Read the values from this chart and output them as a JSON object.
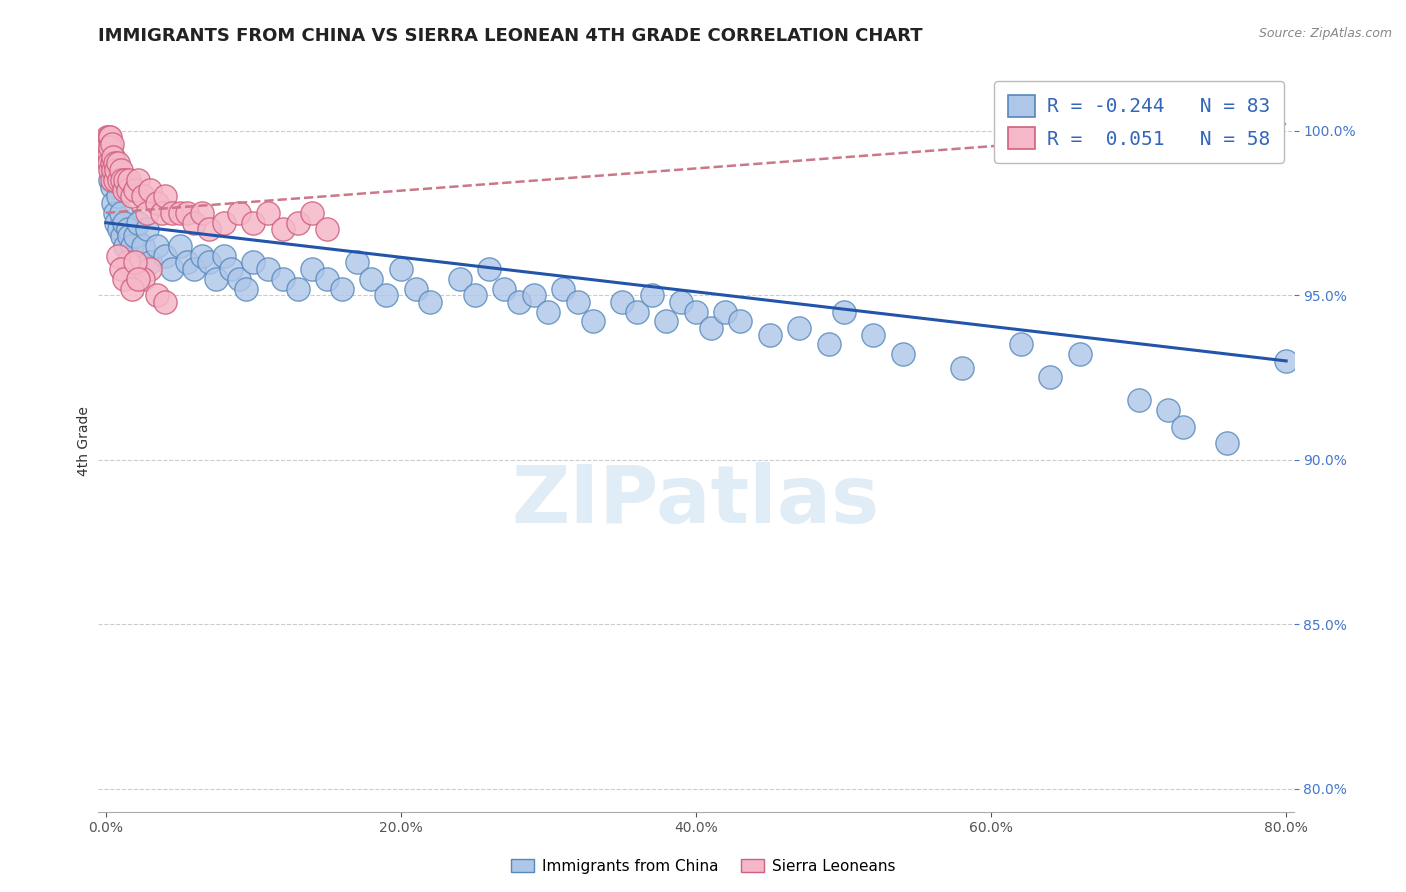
{
  "title": "IMMIGRANTS FROM CHINA VS SIERRA LEONEAN 4TH GRADE CORRELATION CHART",
  "source_text": "Source: ZipAtlas.com",
  "ylabel": "4th Grade",
  "xlim": [
    -0.005,
    0.805
  ],
  "ylim": [
    0.793,
    1.018
  ],
  "xtick_vals": [
    0.0,
    0.2,
    0.4,
    0.6,
    0.8
  ],
  "ytick_vals": [
    0.8,
    0.85,
    0.9,
    0.95,
    1.0
  ],
  "blue_color": "#aec6e8",
  "blue_edge_color": "#5588bb",
  "pink_color": "#f5b8c8",
  "pink_edge_color": "#d06080",
  "blue_line_color": "#2255aa",
  "pink_line_color": "#cc7788",
  "R_blue": -0.244,
  "N_blue": 83,
  "R_pink": 0.051,
  "N_pink": 58,
  "legend_labels": [
    "Immigrants from China",
    "Sierra Leoneans"
  ],
  "watermark": "ZIPatlas",
  "title_fontsize": 13,
  "tick_fontsize": 10,
  "blue_trend_x": [
    0.0,
    0.8
  ],
  "blue_trend_y": [
    0.972,
    0.93
  ],
  "pink_trend_x": [
    0.0,
    0.8
  ],
  "pink_trend_y": [
    0.975,
    1.002
  ],
  "blue_x": [
    0.003,
    0.003,
    0.003,
    0.004,
    0.004,
    0.005,
    0.005,
    0.006,
    0.007,
    0.008,
    0.009,
    0.01,
    0.011,
    0.012,
    0.013,
    0.015,
    0.016,
    0.018,
    0.02,
    0.022,
    0.025,
    0.028,
    0.03,
    0.035,
    0.04,
    0.045,
    0.05,
    0.055,
    0.06,
    0.065,
    0.07,
    0.075,
    0.08,
    0.085,
    0.09,
    0.095,
    0.1,
    0.11,
    0.12,
    0.13,
    0.14,
    0.15,
    0.16,
    0.17,
    0.18,
    0.19,
    0.2,
    0.21,
    0.22,
    0.24,
    0.25,
    0.26,
    0.27,
    0.28,
    0.29,
    0.3,
    0.31,
    0.32,
    0.33,
    0.35,
    0.36,
    0.37,
    0.38,
    0.39,
    0.4,
    0.41,
    0.42,
    0.43,
    0.45,
    0.47,
    0.49,
    0.5,
    0.52,
    0.54,
    0.58,
    0.62,
    0.64,
    0.66,
    0.7,
    0.72,
    0.73,
    0.76,
    0.8
  ],
  "blue_y": [
    0.995,
    0.99,
    0.985,
    0.988,
    0.983,
    0.992,
    0.978,
    0.975,
    0.972,
    0.98,
    0.97,
    0.975,
    0.968,
    0.972,
    0.965,
    0.97,
    0.968,
    0.965,
    0.968,
    0.972,
    0.965,
    0.97,
    0.96,
    0.965,
    0.962,
    0.958,
    0.965,
    0.96,
    0.958,
    0.962,
    0.96,
    0.955,
    0.962,
    0.958,
    0.955,
    0.952,
    0.96,
    0.958,
    0.955,
    0.952,
    0.958,
    0.955,
    0.952,
    0.96,
    0.955,
    0.95,
    0.958,
    0.952,
    0.948,
    0.955,
    0.95,
    0.958,
    0.952,
    0.948,
    0.95,
    0.945,
    0.952,
    0.948,
    0.942,
    0.948,
    0.945,
    0.95,
    0.942,
    0.948,
    0.945,
    0.94,
    0.945,
    0.942,
    0.938,
    0.94,
    0.935,
    0.945,
    0.938,
    0.932,
    0.928,
    0.935,
    0.925,
    0.932,
    0.918,
    0.915,
    0.91,
    0.905,
    0.93
  ],
  "pink_x": [
    0.001,
    0.001,
    0.002,
    0.002,
    0.002,
    0.003,
    0.003,
    0.003,
    0.004,
    0.004,
    0.004,
    0.005,
    0.005,
    0.006,
    0.006,
    0.007,
    0.008,
    0.009,
    0.01,
    0.011,
    0.012,
    0.013,
    0.015,
    0.016,
    0.018,
    0.02,
    0.022,
    0.025,
    0.028,
    0.03,
    0.035,
    0.038,
    0.04,
    0.045,
    0.05,
    0.055,
    0.06,
    0.065,
    0.07,
    0.08,
    0.09,
    0.1,
    0.11,
    0.12,
    0.13,
    0.14,
    0.15,
    0.03,
    0.015,
    0.025,
    0.008,
    0.01,
    0.012,
    0.018,
    0.02,
    0.022,
    0.035,
    0.04
  ],
  "pink_y": [
    0.998,
    0.995,
    0.998,
    0.993,
    0.99,
    0.998,
    0.995,
    0.988,
    0.996,
    0.99,
    0.985,
    0.992,
    0.988,
    0.99,
    0.985,
    0.988,
    0.99,
    0.985,
    0.988,
    0.985,
    0.982,
    0.985,
    0.982,
    0.985,
    0.98,
    0.982,
    0.985,
    0.98,
    0.975,
    0.982,
    0.978,
    0.975,
    0.98,
    0.975,
    0.975,
    0.975,
    0.972,
    0.975,
    0.97,
    0.972,
    0.975,
    0.972,
    0.975,
    0.97,
    0.972,
    0.975,
    0.97,
    0.958,
    0.96,
    0.955,
    0.962,
    0.958,
    0.955,
    0.952,
    0.96,
    0.955,
    0.95,
    0.948
  ]
}
